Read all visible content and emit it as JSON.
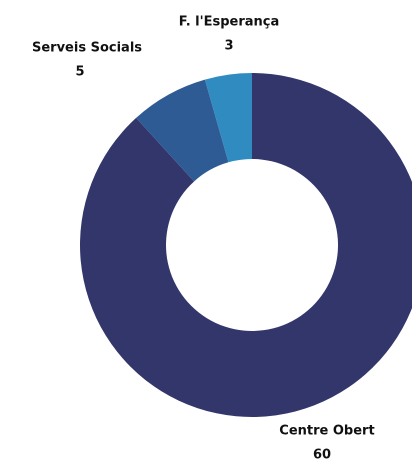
{
  "chart_data": {
    "type": "donut",
    "categories": [
      "Centre Obert",
      "Serveis Socials",
      "F. l'Esperança"
    ],
    "values": [
      60,
      5,
      3
    ],
    "colors": [
      "#32366b",
      "#2f5b94",
      "#2f8bc0"
    ]
  }
}
